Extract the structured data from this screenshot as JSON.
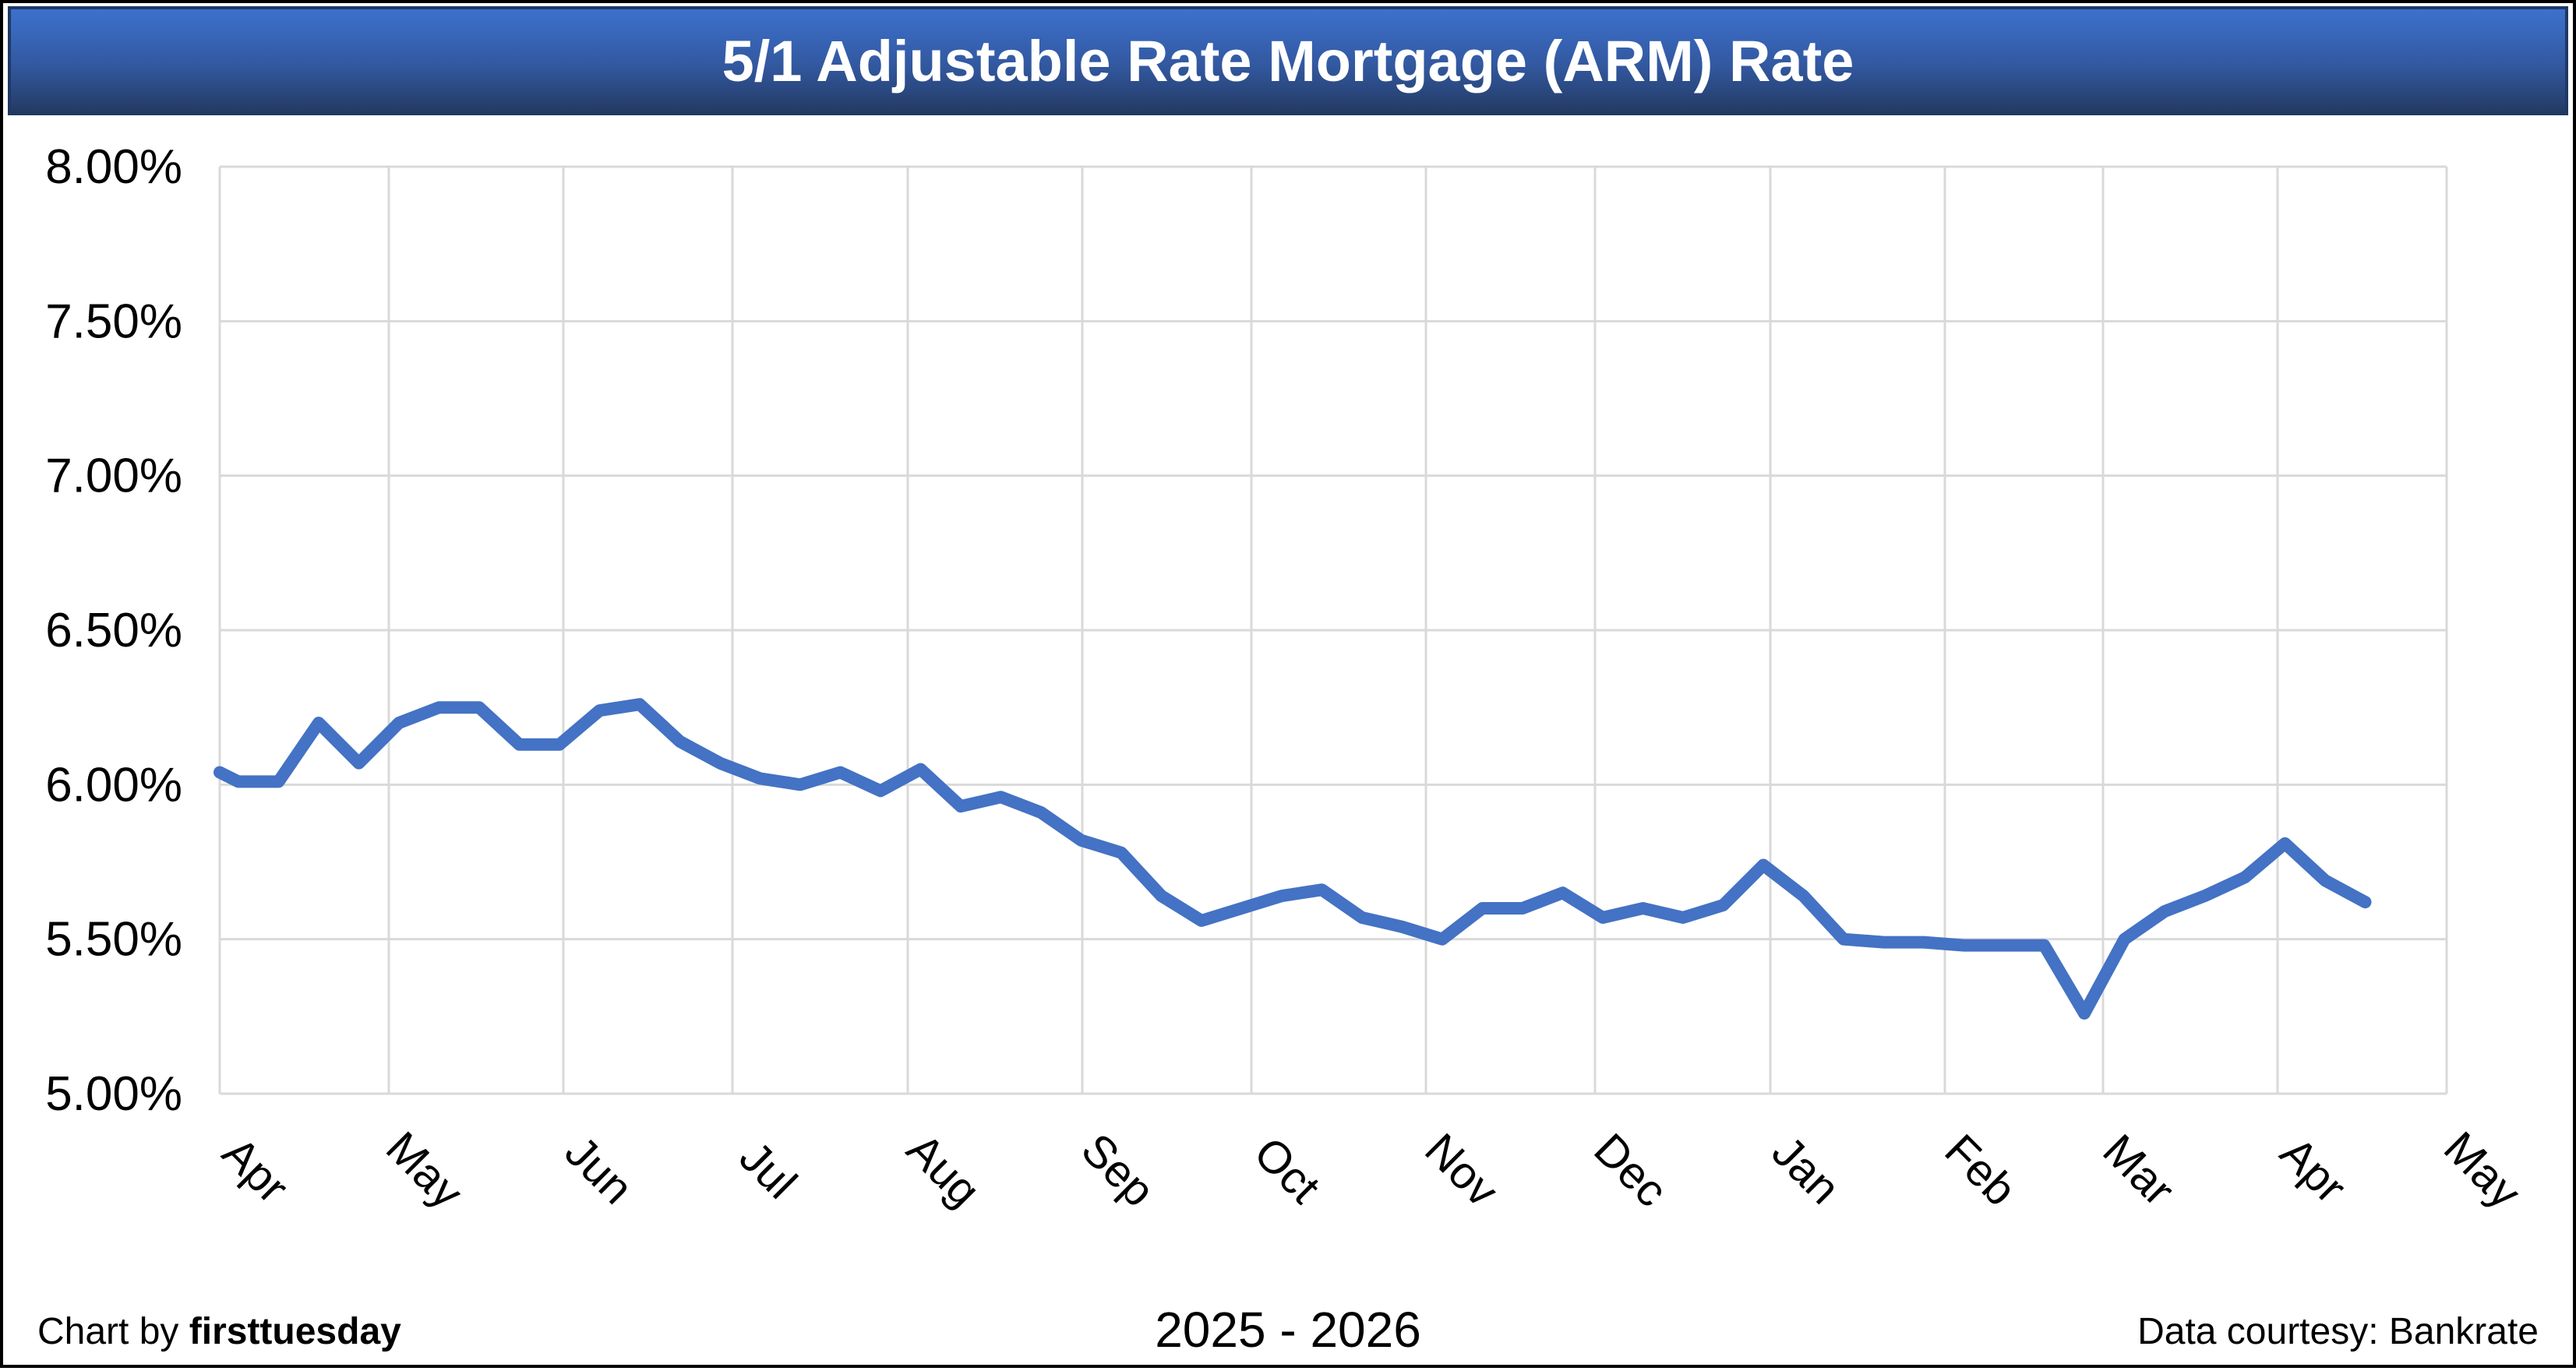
{
  "title_bar": {
    "text": "5/1 Adjustable Rate Mortgage (ARM) Rate"
  },
  "footer": {
    "credit_prefix": "Chart by ",
    "credit_brand": "firsttuesday",
    "period": "2025 - 2026",
    "source": "Data courtesy: Bankrate"
  },
  "colors": {
    "line": "#4472C4",
    "gridline": "#D9D9D9",
    "plot_border": "#D9D9D9",
    "title_bar_border": "#1F3864",
    "title_bar_gradient_top": "#3D71CD",
    "title_bar_gradient_bottom": "#243A63",
    "title_text": "#FFFFFF",
    "axis_text": "#000000",
    "frame_border": "#000000",
    "background": "#FFFFFF"
  },
  "chart_data": {
    "type": "line",
    "title": "5/1 Adjustable Rate Mortgage (ARM) Rate",
    "grid": true,
    "legend": false,
    "x_axis": {
      "labels": [
        "Apr",
        "May",
        "Jun",
        "Jul",
        "Aug",
        "Sep",
        "Oct",
        "Nov",
        "Dec",
        "Jan",
        "Feb",
        "Mar",
        "Apr",
        "May"
      ],
      "period": "2025 - 2026",
      "label_rotation_deg": 45
    },
    "y_axis": {
      "labels": [
        "8.00%",
        "7.50%",
        "7.00%",
        "6.50%",
        "6.00%",
        "5.50%",
        "5.00%"
      ],
      "min": 5.0,
      "max": 8.0,
      "step": 0.5,
      "format": "percent"
    },
    "series": [
      {
        "name": "5/1 ARM rate",
        "values": [
          6.04,
          6.01,
          6.01,
          6.2,
          6.07,
          6.2,
          6.25,
          6.25,
          6.13,
          6.13,
          6.24,
          6.26,
          6.14,
          6.07,
          6.02,
          6.0,
          6.04,
          5.98,
          6.05,
          5.93,
          5.96,
          5.91,
          5.82,
          5.78,
          5.64,
          5.56,
          5.6,
          5.64,
          5.66,
          5.57,
          5.54,
          5.5,
          5.6,
          5.6,
          5.65,
          5.57,
          5.6,
          5.57,
          5.61,
          5.74,
          5.64,
          5.5,
          5.49,
          5.49,
          5.48,
          5.48,
          5.48,
          5.26,
          5.5,
          5.59,
          5.64,
          5.7,
          5.81,
          5.69,
          5.62
        ]
      }
    ]
  }
}
